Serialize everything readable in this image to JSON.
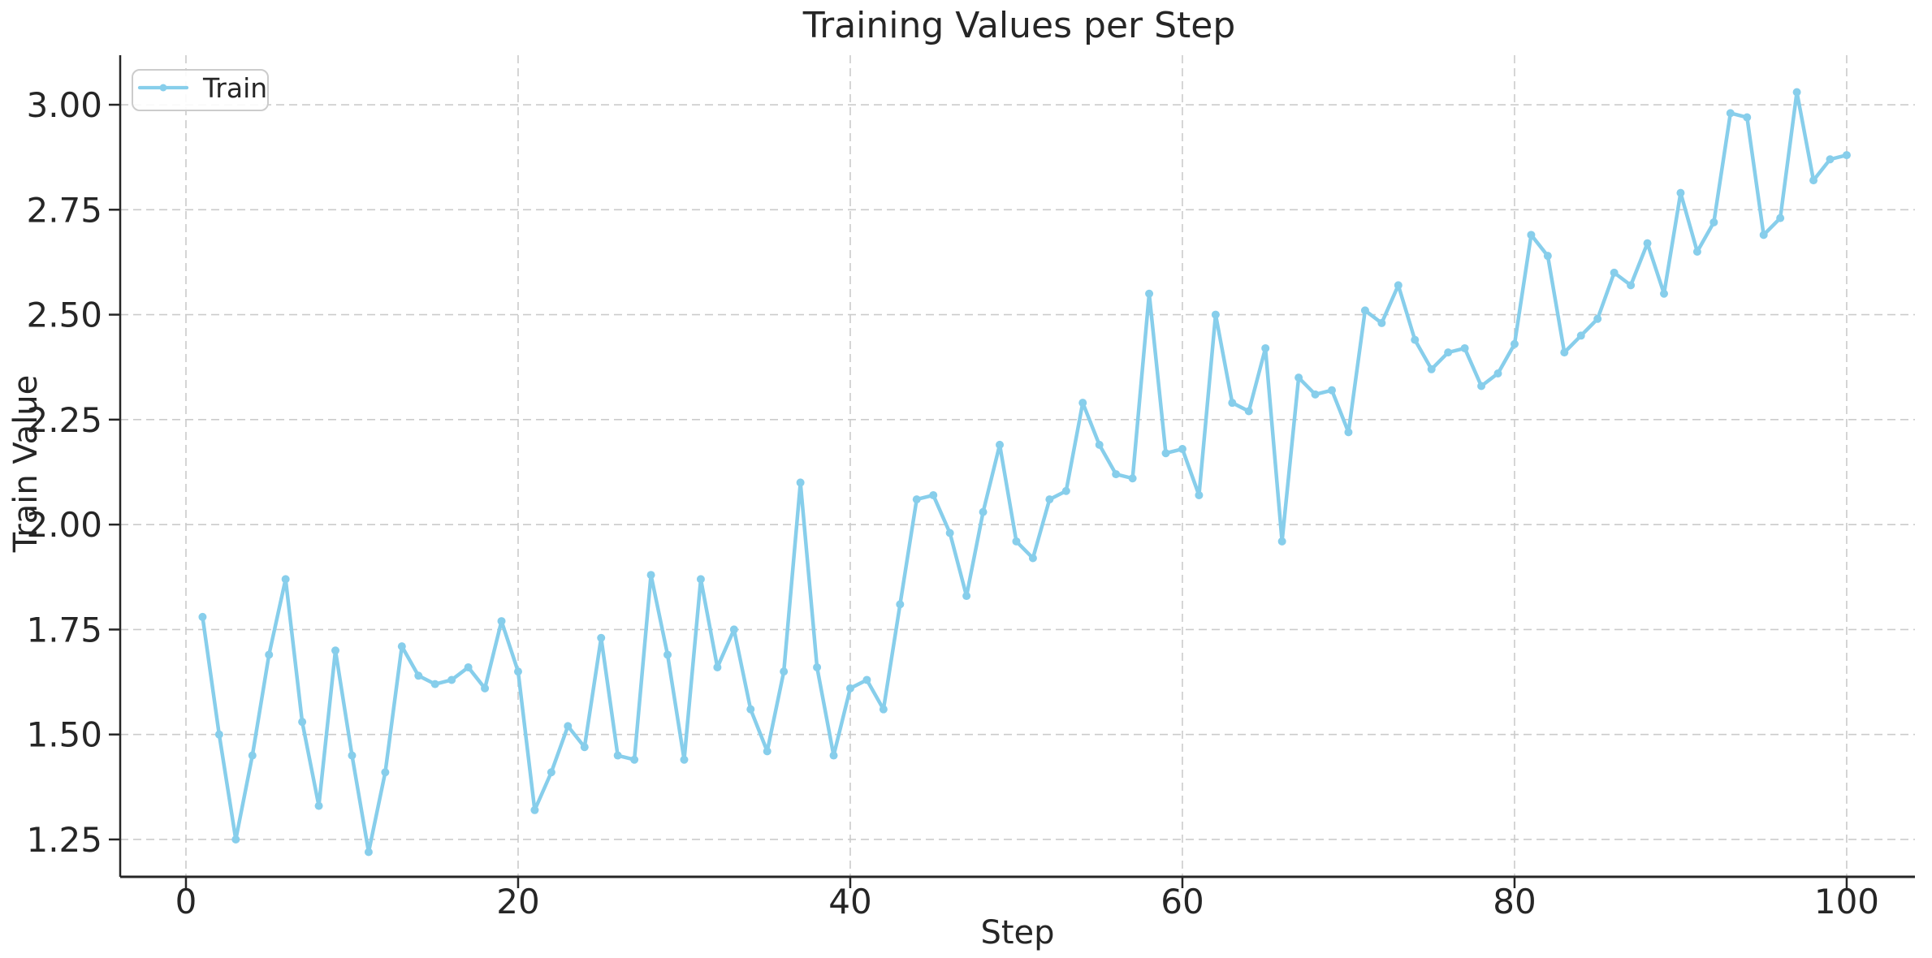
{
  "title": "Training Values per Step",
  "legend": {
    "label": "Train",
    "position": "upper-left"
  },
  "chart_data": {
    "type": "line",
    "title": "Training Values per Step",
    "xlabel": "Step",
    "ylabel": "Train Value",
    "x_ticks": [
      0,
      20,
      40,
      60,
      80,
      100
    ],
    "x_tick_labels": [
      "0",
      "20",
      "40",
      "60",
      "80",
      "100"
    ],
    "y_ticks": [
      1.25,
      1.5,
      1.75,
      2.0,
      2.25,
      2.5,
      2.75,
      3.0
    ],
    "y_tick_labels": [
      "1.25",
      "1.50",
      "1.75",
      "2.00",
      "2.25",
      "2.50",
      "2.75",
      "3.00"
    ],
    "xlim": [
      -3.96,
      104.11
    ],
    "ylim": [
      1.161,
      3.118
    ],
    "grid": true,
    "grid_style": "dashed",
    "legend_position": "upper-left",
    "line_color": "#87CEEB",
    "grid_color": "#cbcbcb",
    "axis_color": "#262626",
    "series": [
      {
        "name": "Train",
        "x_start": 1,
        "x_step": 1,
        "values": [
          1.78,
          1.5,
          1.25,
          1.45,
          1.69,
          1.87,
          1.53,
          1.33,
          1.7,
          1.45,
          1.22,
          1.41,
          1.71,
          1.64,
          1.62,
          1.63,
          1.66,
          1.61,
          1.77,
          1.65,
          1.32,
          1.41,
          1.52,
          1.47,
          1.73,
          1.45,
          1.44,
          1.88,
          1.69,
          1.44,
          1.87,
          1.66,
          1.75,
          1.56,
          1.46,
          1.65,
          2.1,
          1.66,
          1.45,
          1.61,
          1.63,
          1.56,
          1.81,
          2.06,
          2.07,
          1.98,
          1.83,
          2.03,
          2.19,
          1.96,
          1.92,
          2.06,
          2.08,
          2.29,
          2.19,
          2.12,
          2.11,
          2.55,
          2.17,
          2.18,
          2.07,
          2.5,
          2.29,
          2.27,
          2.42,
          1.96,
          2.35,
          2.31,
          2.32,
          2.22,
          2.51,
          2.48,
          2.57,
          2.44,
          2.37,
          2.41,
          2.42,
          2.33,
          2.36,
          2.43,
          2.69,
          2.64,
          2.41,
          2.45,
          2.49,
          2.6,
          2.57,
          2.67,
          2.55,
          2.79,
          2.65,
          2.72,
          2.98,
          2.97,
          2.69,
          2.73,
          3.03,
          2.82,
          2.87,
          2.88
        ]
      }
    ]
  }
}
